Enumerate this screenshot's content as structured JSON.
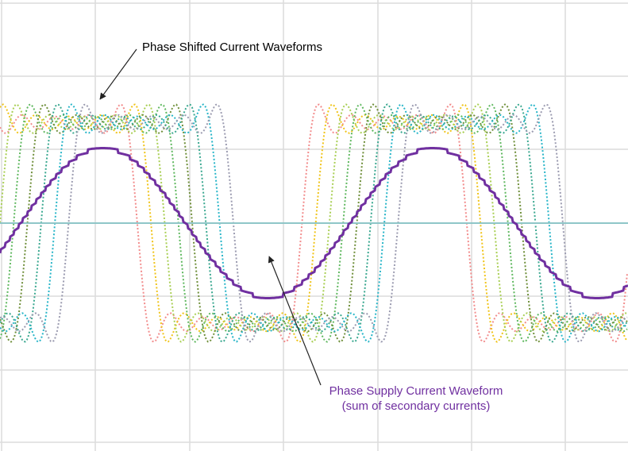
{
  "annotations": {
    "shifted_label": "Phase Shifted Current Waveforms",
    "supply_label_line1": "Phase Supply Current Waveform",
    "supply_label_line2": "(sum of secondary currents)"
  },
  "colors": {
    "grid": "#dcdcdc",
    "zero_line": "#8fc6c8",
    "supply": "#7030a0",
    "arrow": "#222222",
    "phases": [
      "#f28c8c",
      "#f0c419",
      "#a9cf54",
      "#5fb85f",
      "#6f8f3a",
      "#3aa890",
      "#27b5c8",
      "#9b9bb0"
    ]
  },
  "chart_data": {
    "type": "line",
    "description": "Eight phase-shifted square-ish current waveforms (dotted) and their sum (solid, stepped sine)",
    "phase_count": 8,
    "phase_shift_deg": 15,
    "amplitude_ratio_supply_to_secondary": 0.5,
    "periods_shown": 2.5
  }
}
